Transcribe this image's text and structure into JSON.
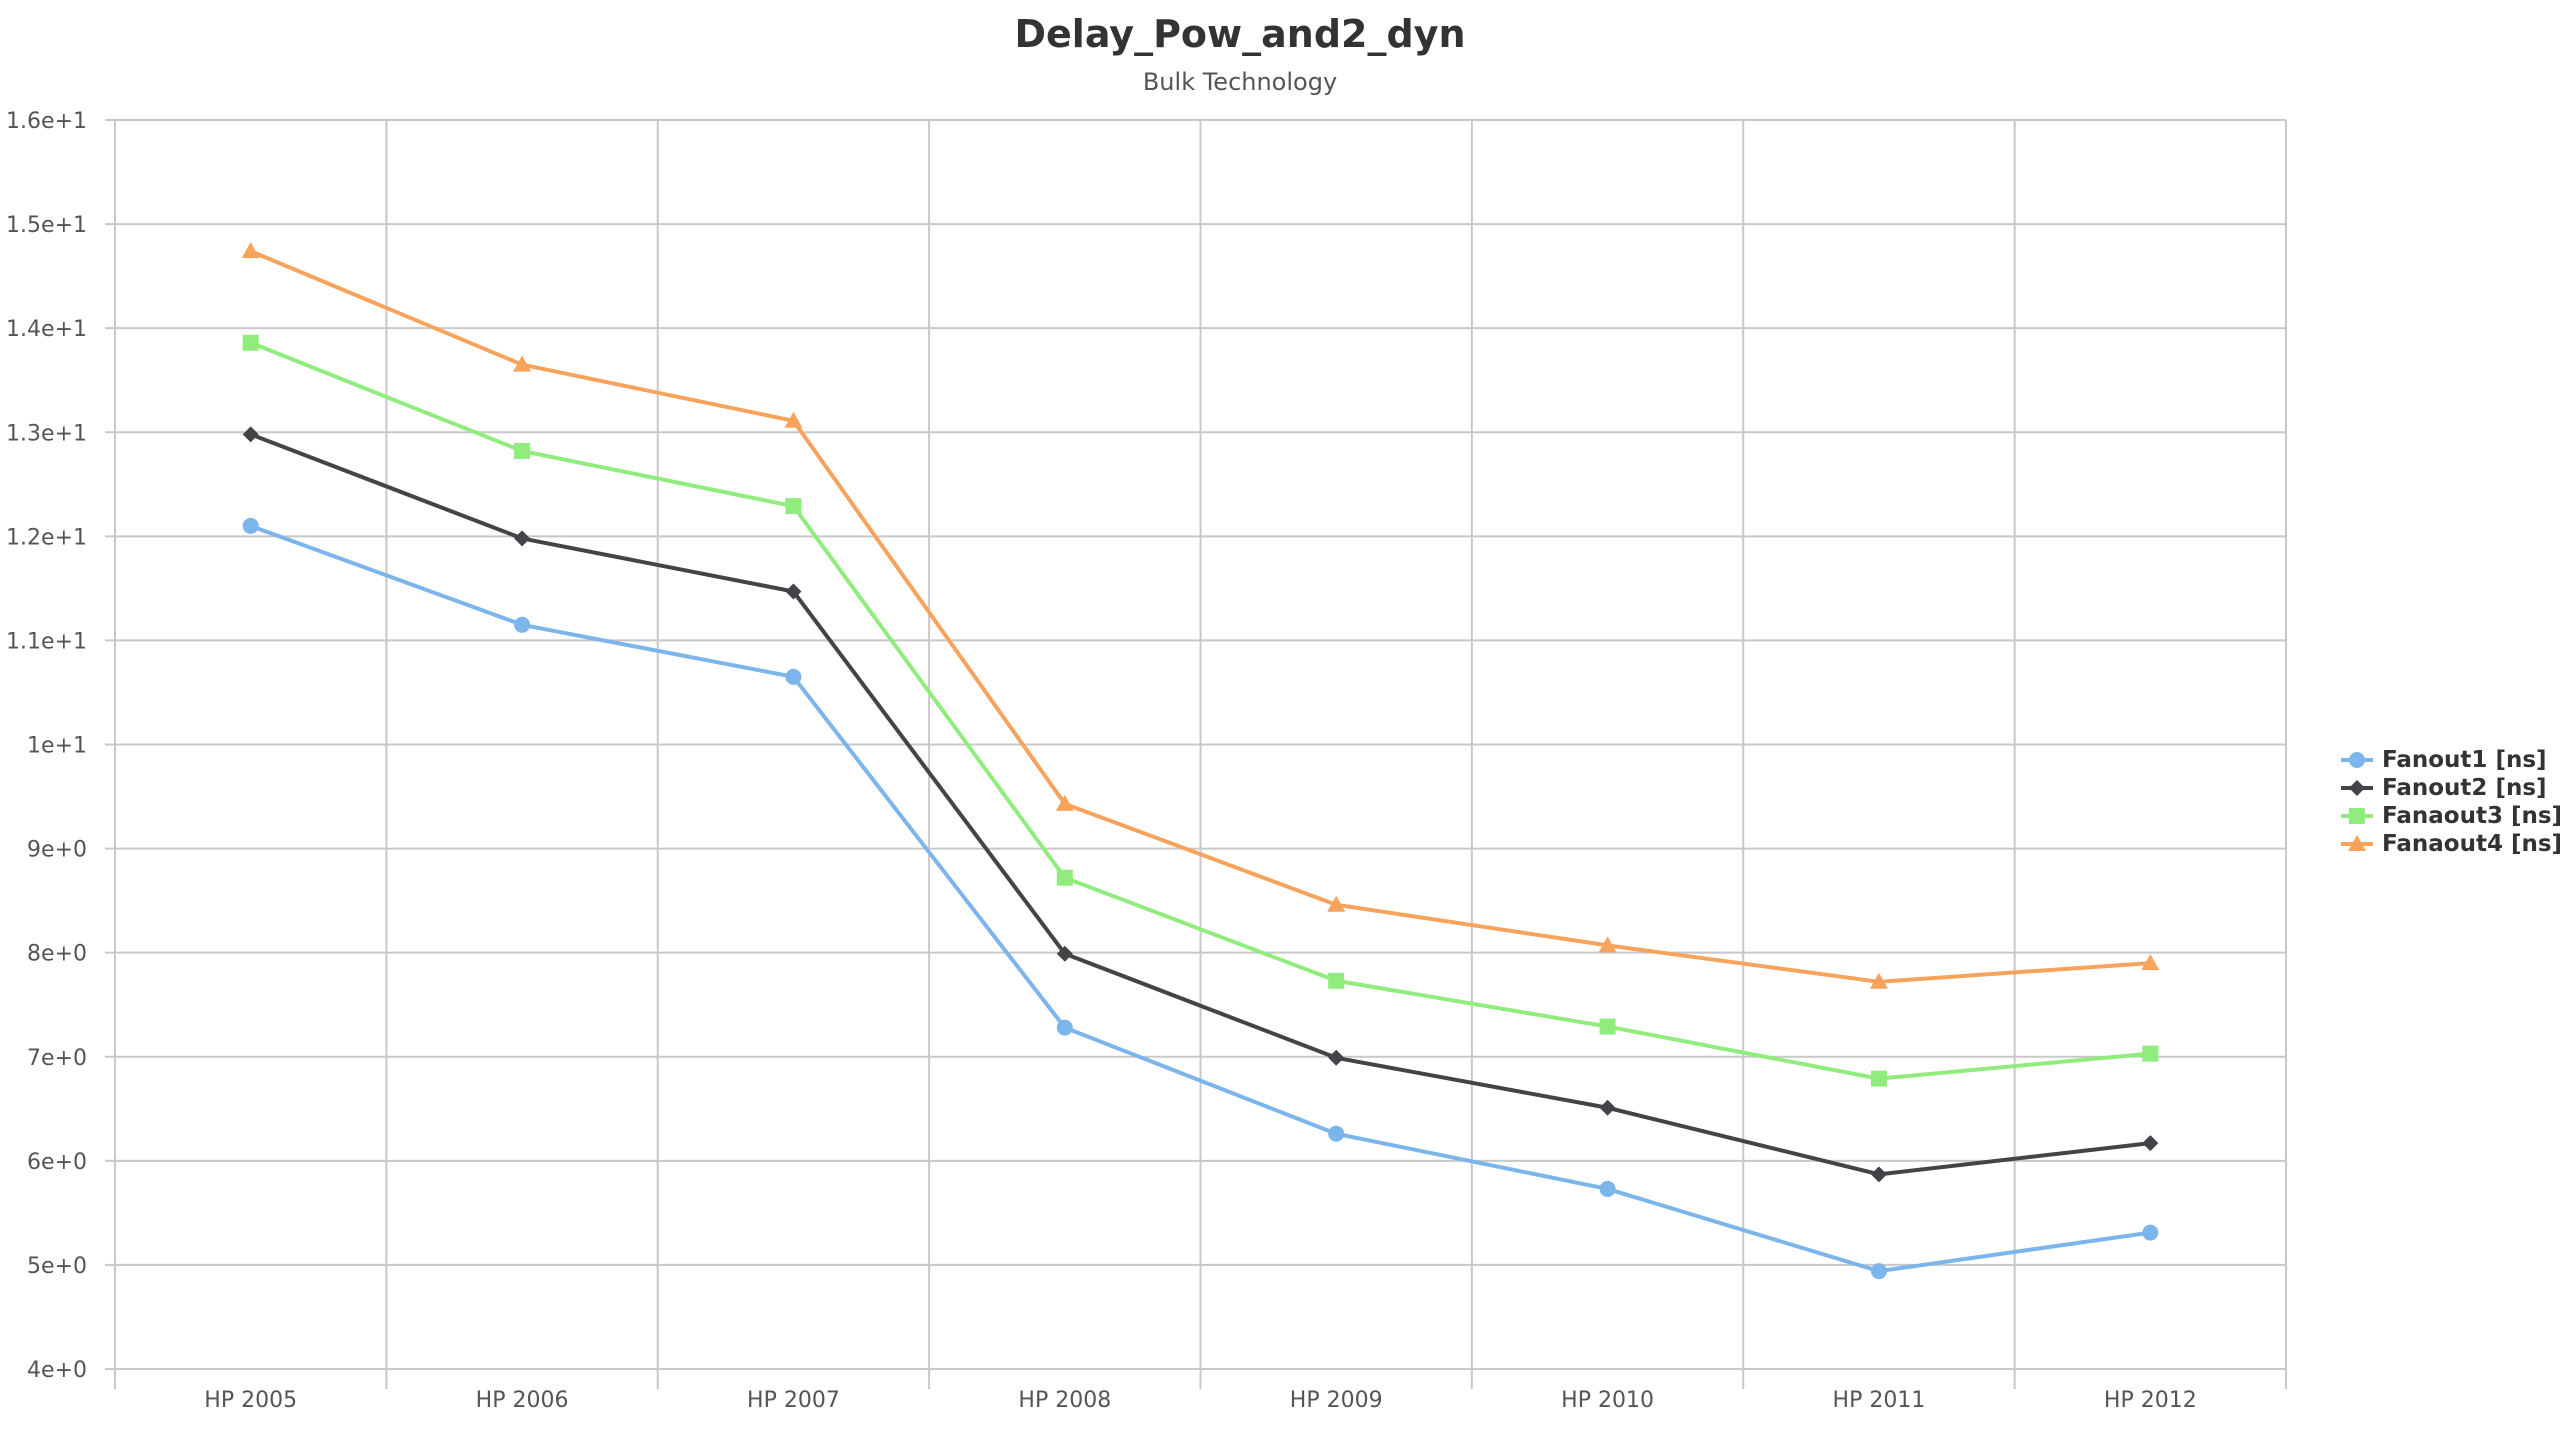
{
  "chart_data": {
    "type": "line",
    "title": "Delay_Pow_and2_dyn",
    "subtitle": "Bulk Technology",
    "xlabel": "",
    "ylabel": "",
    "categories": [
      "HP 2005",
      "HP 2006",
      "HP 2007",
      "HP 2008",
      "HP 2009",
      "HP 2010",
      "HP 2011",
      "HP 2012"
    ],
    "ylim": [
      4,
      16
    ],
    "yticks": [
      4,
      5,
      6,
      7,
      8,
      9,
      10,
      11,
      12,
      13,
      14,
      15,
      16
    ],
    "ytick_labels": [
      "4e+0",
      "5e+0",
      "6e+0",
      "7e+0",
      "8e+0",
      "9e+0",
      "1e+1",
      "1.1e+1",
      "1.2e+1",
      "1.3e+1",
      "1.4e+1",
      "1.5e+1",
      "1.6e+1"
    ],
    "grid": true,
    "legend_position": "right",
    "series": [
      {
        "name": "Fanout1 [ns]",
        "color": "#7cb5ec",
        "marker": "circle",
        "values": [
          12.1,
          11.15,
          10.65,
          7.28,
          6.26,
          5.73,
          4.94,
          5.31
        ]
      },
      {
        "name": "Fanout2 [ns]",
        "color": "#434348",
        "marker": "diamond",
        "values": [
          12.98,
          11.98,
          11.47,
          7.99,
          6.99,
          6.51,
          5.87,
          6.17
        ]
      },
      {
        "name": "Fanaout3 [ns]",
        "color": "#90ed7d",
        "marker": "square",
        "values": [
          13.86,
          12.82,
          12.29,
          8.72,
          7.73,
          7.29,
          6.79,
          7.03
        ]
      },
      {
        "name": "Fanaout4 [ns]",
        "color": "#f7a35c",
        "marker": "triangle",
        "values": [
          14.74,
          13.65,
          13.11,
          9.43,
          8.46,
          8.07,
          7.72,
          7.9
        ]
      }
    ]
  }
}
